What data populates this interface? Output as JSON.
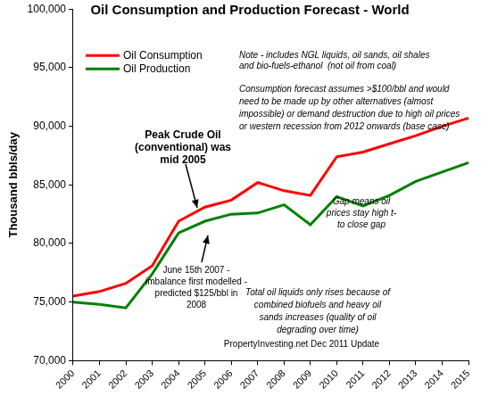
{
  "chart_data": {
    "type": "line",
    "title": "Oil Consumption and Production Forecast - World",
    "y_label": "Thousand bbls/day",
    "categories": [
      "2000",
      "2001",
      "2002",
      "2003",
      "2004",
      "2005",
      "2006",
      "2007",
      "2008",
      "2009",
      "2010",
      "2011",
      "2012",
      "2013",
      "2014",
      "2015"
    ],
    "series": [
      {
        "name": "Oil Consumption",
        "color": "#ff0000",
        "values": [
          75500,
          75900,
          76600,
          78100,
          81900,
          83100,
          83700,
          85200,
          84500,
          84100,
          87400,
          87800,
          88500,
          89200,
          90000,
          90700
        ]
      },
      {
        "name": "Oil Production",
        "color": "#008000",
        "values": [
          75000,
          74800,
          74500,
          77400,
          80900,
          81900,
          82500,
          82600,
          83300,
          81600,
          84000,
          83200,
          84100,
          85300,
          86100,
          86900
        ]
      }
    ],
    "ylim": [
      70000,
      100000
    ],
    "yticks": [
      {
        "value": 70000,
        "label": "70,000"
      },
      {
        "value": 75000,
        "label": "75,000"
      },
      {
        "value": 80000,
        "label": "80,000"
      },
      {
        "value": 85000,
        "label": "85,000"
      },
      {
        "value": 90000,
        "label": "90,000"
      },
      {
        "value": 95000,
        "label": "95,000"
      },
      {
        "value": 100000,
        "label": "100,000"
      }
    ],
    "grid": false,
    "legend": "top-left",
    "annotations": [
      [
        "Note - includes NGL liquids, oil sands, oil shales",
        "and bio-fuels-ethanol  (not oil from coal)"
      ],
      [
        "Consumption forecast assumes >$100/bbl and would",
        "need to be made up by other alternatives (almost",
        "impossible) or demand destruction due to high oil prices",
        "or western recession from 2012 onwards (base case)"
      ],
      [
        "Peak Crude Oil",
        "(conventional) was",
        "mid 2005"
      ],
      [
        "Gap means oil",
        "prices stay high t-",
        "to close gap"
      ],
      [
        "June 15th 2007 -",
        "imbalance first modelled -",
        "predicted $125/bbl in",
        "2008"
      ],
      [
        "Total oil liquids only rises because of",
        "combined biofuels and heavy oil",
        "sands increases (quality of oil",
        "degrading over time)"
      ],
      [
        "PropertyInvesting.net Dec 2011 Update"
      ]
    ]
  }
}
